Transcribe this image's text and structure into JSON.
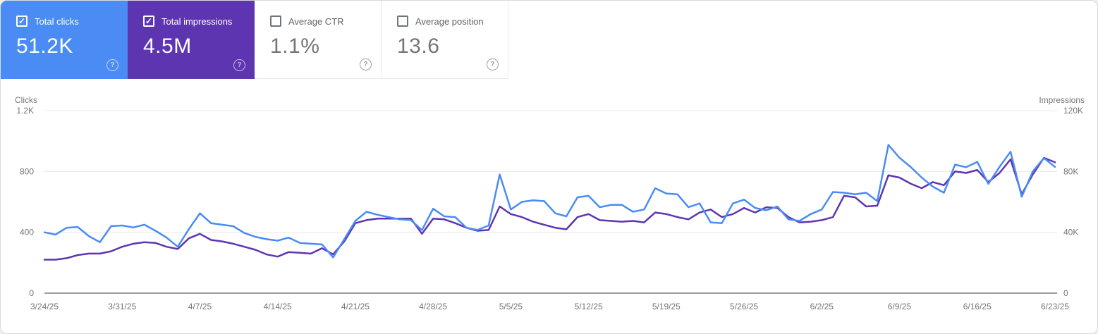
{
  "cards": [
    {
      "label": "Total clicks",
      "value": "51.2K",
      "checked": true,
      "selected": true,
      "color": "#4a8cf4"
    },
    {
      "label": "Total impressions",
      "value": "4.5M",
      "checked": true,
      "selected": true,
      "color": "#5e35b1"
    },
    {
      "label": "Average CTR",
      "value": "1.1%",
      "checked": false,
      "selected": false
    },
    {
      "label": "Average position",
      "value": "13.6",
      "checked": false,
      "selected": false
    }
  ],
  "help_icon_glyph": "?",
  "chart_data": {
    "type": "line",
    "x_unit": "day",
    "date_range": [
      "3/24/25",
      "6/23/25"
    ],
    "x_tick_labels": [
      "3/24/25",
      "3/31/25",
      "4/7/25",
      "4/14/25",
      "4/21/25",
      "4/28/25",
      "5/5/25",
      "5/12/25",
      "5/19/25",
      "5/26/25",
      "6/2/25",
      "6/9/25",
      "6/16/25",
      "6/23/25"
    ],
    "x_tick_indices": [
      0,
      7,
      14,
      21,
      28,
      35,
      42,
      49,
      56,
      63,
      70,
      77,
      84,
      91
    ],
    "grid": "horizontal",
    "legend": "none",
    "left_axis": {
      "title": "Clicks",
      "max": 1200,
      "ticks": [
        {
          "value": 0,
          "label": "0"
        },
        {
          "value": 400,
          "label": "400"
        },
        {
          "value": 800,
          "label": "800"
        },
        {
          "value": 1200,
          "label": "1.2K"
        }
      ]
    },
    "right_axis": {
      "title": "Impressions",
      "max": 120000,
      "ticks": [
        {
          "value": 0,
          "label": "0"
        },
        {
          "value": 40000,
          "label": "40K"
        },
        {
          "value": 80000,
          "label": "80K"
        },
        {
          "value": 120000,
          "label": "120K"
        }
      ]
    },
    "series": [
      {
        "name": "Total impressions",
        "axis": "right",
        "color": "#5e35b1",
        "values": [
          22000,
          22000,
          23000,
          25000,
          26000,
          26000,
          27500,
          30500,
          32500,
          33500,
          33000,
          30500,
          29000,
          36000,
          39000,
          35000,
          34000,
          32500,
          30500,
          28500,
          25500,
          24000,
          27000,
          26500,
          26000,
          29500,
          25500,
          34000,
          46000,
          48000,
          49000,
          49000,
          49000,
          49000,
          39000,
          49000,
          48500,
          46000,
          43000,
          41000,
          41500,
          57000,
          52000,
          50000,
          47000,
          45000,
          43000,
          42000,
          50000,
          52000,
          48000,
          47500,
          47000,
          47500,
          46500,
          53000,
          52000,
          50000,
          48500,
          53000,
          55000,
          50000,
          52000,
          56000,
          53000,
          56500,
          56000,
          50000,
          46500,
          47000,
          48000,
          50000,
          64000,
          63000,
          57000,
          57500,
          77500,
          76000,
          72000,
          69000,
          73000,
          71000,
          80000,
          79000,
          81000,
          73000,
          79000,
          88000,
          65000,
          78000,
          89000,
          86000
        ]
      },
      {
        "name": "Total clicks",
        "axis": "left",
        "color": "#4a8cf4",
        "values": [
          400,
          385,
          430,
          435,
          375,
          335,
          440,
          445,
          432,
          450,
          410,
          365,
          305,
          420,
          525,
          460,
          450,
          440,
          395,
          370,
          355,
          345,
          365,
          330,
          325,
          320,
          235,
          355,
          475,
          535,
          515,
          500,
          485,
          480,
          415,
          555,
          505,
          500,
          430,
          415,
          445,
          780,
          550,
          600,
          610,
          605,
          525,
          505,
          630,
          640,
          565,
          580,
          580,
          535,
          550,
          690,
          655,
          650,
          565,
          590,
          465,
          460,
          590,
          615,
          560,
          545,
          570,
          485,
          475,
          520,
          550,
          665,
          660,
          650,
          660,
          605,
          975,
          890,
          830,
          760,
          700,
          660,
          845,
          828,
          863,
          718,
          830,
          930,
          634,
          800,
          888,
          830
        ]
      }
    ],
    "style": {
      "grid_color": "#e8e8e8",
      "axis_line_color": "#9e9e9e",
      "label_color": "#757575"
    }
  }
}
